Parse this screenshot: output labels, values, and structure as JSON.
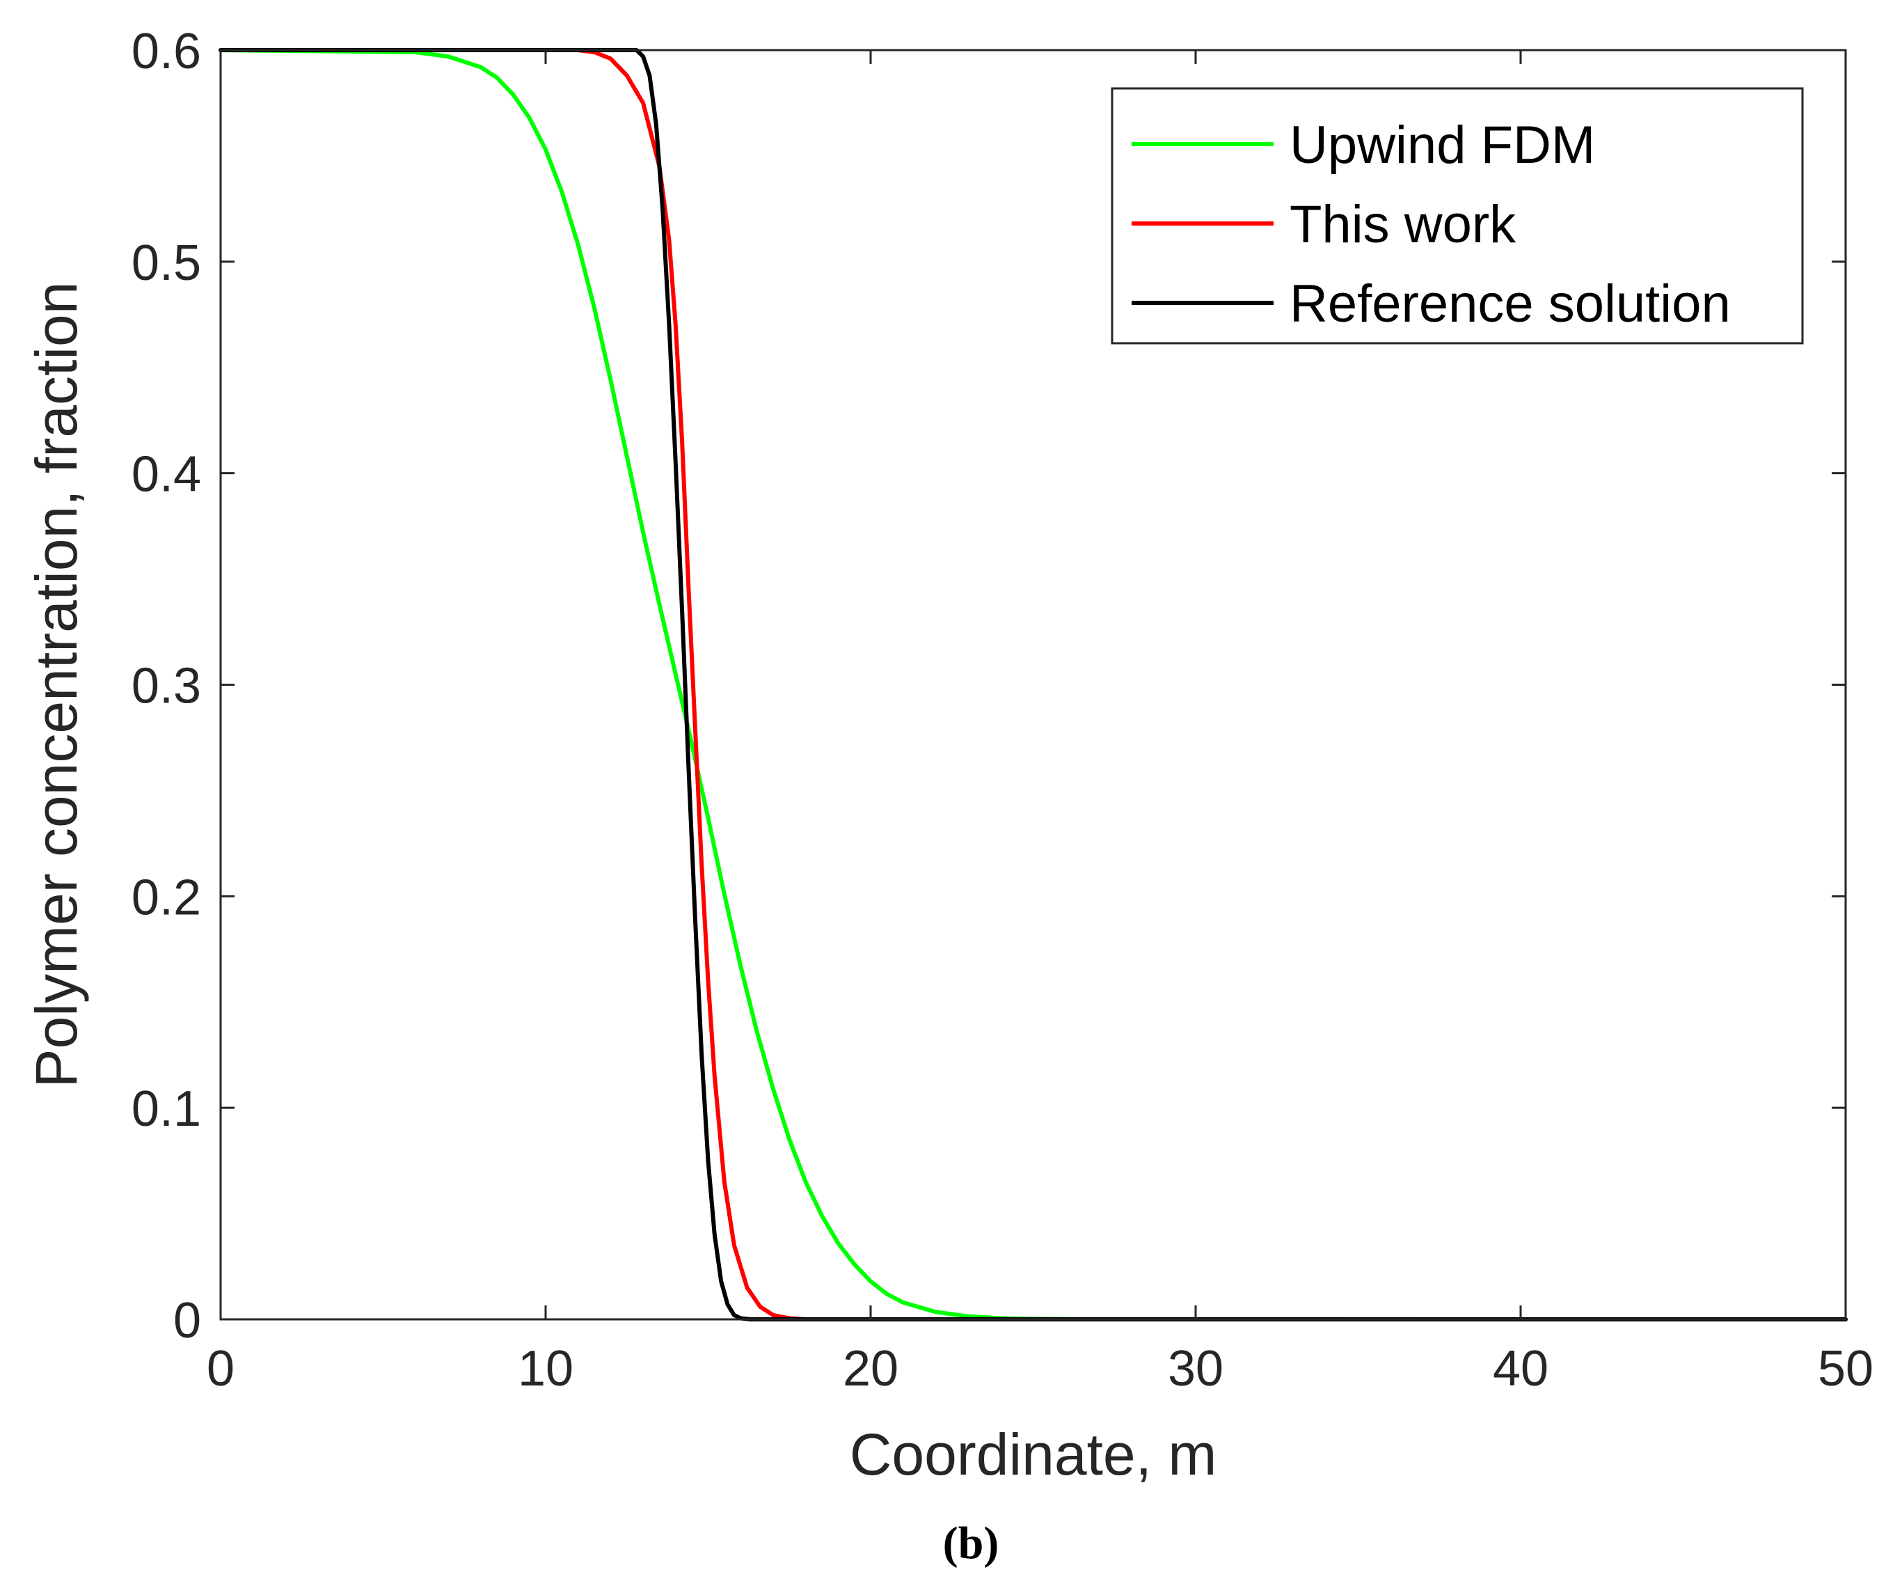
{
  "chart_data": {
    "type": "line",
    "title": "",
    "xlabel": "Coordinate, m",
    "ylabel": "Polymer concentration, fraction",
    "xlim": [
      0,
      50
    ],
    "ylim": [
      0,
      0.6
    ],
    "xticks": [
      0,
      10,
      20,
      30,
      40,
      50
    ],
    "yticks": [
      0,
      0.1,
      0.2,
      0.3,
      0.4,
      0.5,
      0.6
    ],
    "xtick_labels": [
      "0",
      "10",
      "20",
      "30",
      "40",
      "50"
    ],
    "ytick_labels": [
      "0",
      "0.1",
      "0.2",
      "0.3",
      "0.4",
      "0.5",
      "0.6"
    ],
    "grid": false,
    "legend_position": "top-right",
    "caption": "(b)",
    "series": [
      {
        "name": "Upwind FDM",
        "color": "#00ff00",
        "x": [
          0,
          6,
          7,
          8,
          8.5,
          9,
          9.5,
          10,
          10.5,
          11,
          11.5,
          12,
          12.5,
          13,
          13.5,
          14,
          14.5,
          15,
          15.5,
          16,
          16.5,
          17,
          17.5,
          18,
          18.5,
          19,
          19.5,
          20,
          20.5,
          21,
          22,
          23,
          24,
          25,
          26,
          50
        ],
        "y": [
          0.6,
          0.599,
          0.597,
          0.592,
          0.587,
          0.579,
          0.568,
          0.553,
          0.533,
          0.508,
          0.478,
          0.444,
          0.408,
          0.372,
          0.338,
          0.305,
          0.272,
          0.237,
          0.201,
          0.167,
          0.136,
          0.109,
          0.085,
          0.065,
          0.049,
          0.036,
          0.026,
          0.018,
          0.012,
          0.008,
          0.0035,
          0.0014,
          0.0005,
          0.0002,
          0.0001,
          0
        ]
      },
      {
        "name": "This work",
        "color": "#ff0000",
        "x": [
          0,
          11,
          11.5,
          12,
          12.5,
          13,
          13.5,
          13.8,
          14.0,
          14.2,
          14.4,
          14.6,
          14.8,
          15.0,
          15.2,
          15.5,
          15.8,
          16.2,
          16.6,
          17.0,
          17.5,
          18,
          50
        ],
        "y": [
          0.6,
          0.6,
          0.599,
          0.596,
          0.588,
          0.575,
          0.545,
          0.51,
          0.47,
          0.415,
          0.345,
          0.28,
          0.215,
          0.16,
          0.115,
          0.065,
          0.035,
          0.015,
          0.006,
          0.002,
          0.0005,
          0,
          0
        ]
      },
      {
        "name": "Reference solution",
        "color": "#000000",
        "x": [
          0,
          12,
          12.8,
          13.0,
          13.2,
          13.4,
          13.6,
          13.8,
          14.0,
          14.2,
          14.4,
          14.6,
          14.8,
          15.0,
          15.2,
          15.4,
          15.6,
          15.8,
          16.0,
          16.3,
          50
        ],
        "y": [
          0.6,
          0.6,
          0.6,
          0.597,
          0.588,
          0.565,
          0.525,
          0.47,
          0.405,
          0.335,
          0.26,
          0.19,
          0.125,
          0.075,
          0.04,
          0.018,
          0.007,
          0.002,
          0.0005,
          0,
          0
        ]
      }
    ]
  }
}
